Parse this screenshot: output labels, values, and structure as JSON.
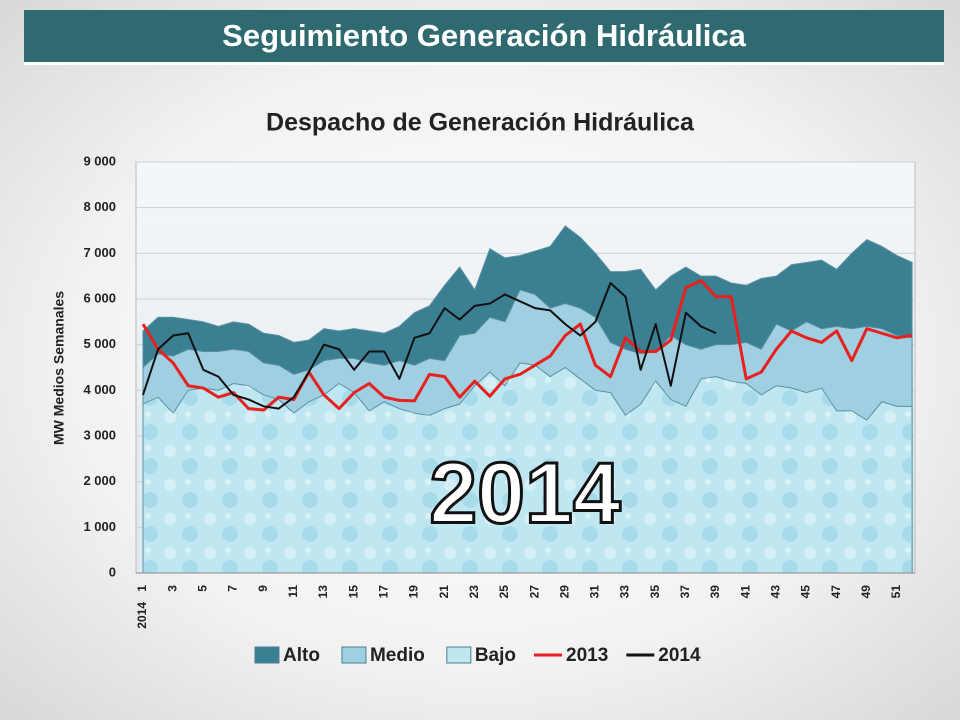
{
  "header": {
    "title": "Seguimiento Generación Hidráulica"
  },
  "chart_data": {
    "type": "area",
    "title": "Despacho de Generación Hidráulica",
    "y_label": "MW Medios Semanales",
    "annotation": "2014",
    "x_group_label": "2014",
    "categories": [
      1,
      null,
      3,
      null,
      5,
      null,
      7,
      null,
      9,
      null,
      11,
      null,
      13,
      null,
      15,
      null,
      17,
      null,
      19,
      null,
      21,
      null,
      23,
      null,
      25,
      null,
      27,
      null,
      29,
      null,
      31,
      null,
      33,
      null,
      35,
      null,
      37,
      null,
      39,
      null,
      41,
      null,
      43,
      null,
      45,
      null,
      47,
      null,
      49,
      null,
      51,
      null
    ],
    "ylim": [
      0,
      9000
    ],
    "yticks": [
      0,
      {
        "value": 1000,
        "label": "1 000"
      },
      {
        "value": 2000,
        "label": "2 000"
      },
      {
        "value": 3000,
        "label": "3 000"
      },
      {
        "value": 4000,
        "label": "4 000"
      },
      {
        "value": 5000,
        "label": "5 000"
      },
      {
        "value": 6000,
        "label": "6 000"
      },
      {
        "value": 7000,
        "label": "7 000"
      },
      {
        "value": 8000,
        "label": "8 000"
      },
      {
        "value": 9000,
        "label": "9 000"
      }
    ],
    "grid": true,
    "legend": "bottom",
    "series": [
      {
        "name": "Alto",
        "type": "area",
        "color": "#3b7f92",
        "values": [
          5300,
          5600,
          5600,
          5550,
          5500,
          5400,
          5500,
          5450,
          5250,
          5200,
          5050,
          5100,
          5350,
          5300,
          5350,
          5300,
          5250,
          5400,
          5700,
          5850,
          6300,
          6700,
          6200,
          7100,
          6900,
          6950,
          7050,
          7150,
          7600,
          7350,
          7000,
          6600,
          6600,
          6650,
          6200,
          6500,
          6700,
          6500,
          6500,
          6350,
          6300,
          6450,
          6500,
          6750,
          6800,
          6850,
          6650,
          7000,
          7300,
          7150,
          6950,
          6800
        ]
      },
      {
        "name": "Medio",
        "type": "area",
        "color": "#9fcfe0",
        "values": [
          4500,
          4800,
          4750,
          4900,
          4850,
          4850,
          4900,
          4850,
          4600,
          4550,
          4350,
          4450,
          4650,
          4700,
          4700,
          4600,
          4550,
          4650,
          4550,
          4700,
          4650,
          5200,
          5250,
          5600,
          5500,
          6200,
          6100,
          5800,
          5900,
          5800,
          5600,
          5050,
          4900,
          4800,
          4850,
          5200,
          5000,
          4900,
          5000,
          5000,
          5050,
          4900,
          5450,
          5300,
          5500,
          5350,
          5400,
          5350,
          5400,
          5350,
          5200,
          5150
        ]
      },
      {
        "name": "Bajo",
        "type": "area",
        "color": "#bfe7f1",
        "values": [
          3700,
          3850,
          3500,
          4000,
          4050,
          4000,
          4150,
          4100,
          3900,
          3800,
          3500,
          3750,
          3900,
          4150,
          3950,
          3550,
          3750,
          3600,
          3500,
          3450,
          3600,
          3700,
          4100,
          4400,
          4100,
          4600,
          4550,
          4300,
          4500,
          4250,
          4000,
          3950,
          3450,
          3700,
          4200,
          3800,
          3650,
          4250,
          4300,
          4200,
          4150,
          3900,
          4100,
          4050,
          3950,
          4050,
          3550,
          3550,
          3350,
          3750,
          3650,
          3650
        ]
      },
      {
        "name": "2013",
        "type": "line",
        "color": "#e8201e",
        "values": [
          5450,
          4900,
          4600,
          4100,
          4050,
          3850,
          3950,
          3600,
          3570,
          3850,
          3800,
          4400,
          3900,
          3600,
          3950,
          4150,
          3850,
          3780,
          3770,
          4350,
          4300,
          3850,
          4200,
          3870,
          4250,
          4350,
          4550,
          4750,
          5200,
          5450,
          4550,
          4300,
          5150,
          4850,
          4850,
          5100,
          6250,
          6400,
          6050,
          6050,
          4250,
          4400,
          4900,
          5300,
          5150,
          5050,
          5300,
          4650,
          5350,
          5250,
          5150,
          5200
        ]
      },
      {
        "name": "2014",
        "type": "line",
        "color": "#111111",
        "values": [
          3900,
          4900,
          5200,
          5250,
          4450,
          4300,
          3900,
          3800,
          3650,
          3600,
          3850,
          4400,
          5000,
          4900,
          4450,
          4850,
          4850,
          4250,
          5150,
          5250,
          5800,
          5550,
          5850,
          5900,
          6100,
          5950,
          5800,
          5750,
          5450,
          5200,
          5500,
          6350,
          6050,
          4450,
          5450,
          4100,
          5700,
          5400,
          5250,
          null,
          null,
          null,
          null,
          null,
          null,
          null,
          null,
          null,
          null,
          null,
          null,
          null
        ]
      }
    ]
  }
}
